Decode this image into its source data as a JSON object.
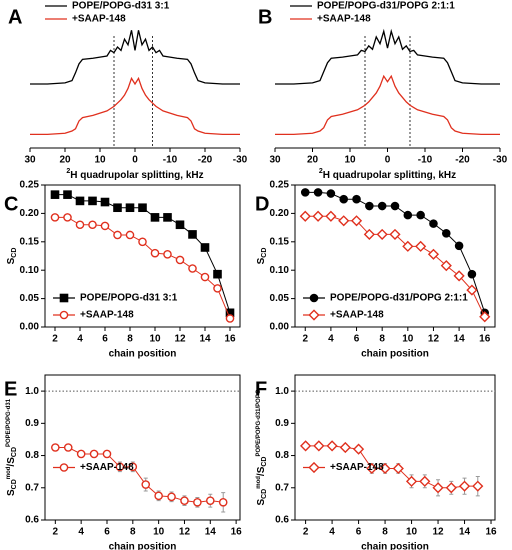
{
  "chart_data": [
    {
      "type": "line",
      "label": "A",
      "legend": "top",
      "xlabel_parts": [
        "2",
        "H quadrupolar splitting, kHz"
      ],
      "x": [
        30,
        25,
        20,
        18,
        17,
        16,
        15,
        12,
        10,
        8,
        7,
        6,
        5,
        4,
        3,
        2,
        1,
        0,
        -1,
        -2,
        -3,
        -4,
        -5,
        -6,
        -7,
        -8,
        -10,
        -12,
        -15,
        -16,
        -17,
        -18,
        -20,
        -25,
        -30
      ],
      "xlim": [
        30,
        -30
      ],
      "xticks": [
        30,
        20,
        10,
        0,
        -10,
        -20,
        -30
      ],
      "ylim": [
        0,
        1
      ],
      "dashed_lines": [
        6,
        -5
      ],
      "series": [
        {
          "name": "POPE/POPG-d31 3:1",
          "color": "#000000",
          "values": [
            0.5,
            0.5,
            0.51,
            0.53,
            0.6,
            0.68,
            0.72,
            0.73,
            0.74,
            0.75,
            0.8,
            0.78,
            0.83,
            0.8,
            0.9,
            0.85,
            0.98,
            0.8,
            0.98,
            0.85,
            0.9,
            0.8,
            0.83,
            0.78,
            0.8,
            0.75,
            0.74,
            0.73,
            0.72,
            0.68,
            0.6,
            0.53,
            0.51,
            0.5,
            0.5
          ]
        },
        {
          "name": "+SAAP-148",
          "color": "#e0301e",
          "values": [
            0.05,
            0.05,
            0.06,
            0.08,
            0.1,
            0.17,
            0.2,
            0.22,
            0.24,
            0.26,
            0.28,
            0.3,
            0.33,
            0.36,
            0.4,
            0.46,
            0.55,
            0.5,
            0.55,
            0.46,
            0.4,
            0.36,
            0.33,
            0.3,
            0.28,
            0.26,
            0.24,
            0.22,
            0.2,
            0.17,
            0.1,
            0.08,
            0.06,
            0.05,
            0.05
          ]
        }
      ]
    },
    {
      "type": "line",
      "label": "B",
      "legend": "top",
      "xlabel_parts": [
        "2",
        "H quadrupolar splitting, kHz"
      ],
      "x": [
        30,
        25,
        20,
        18,
        17,
        16,
        15,
        12,
        10,
        8,
        7,
        6,
        5,
        4,
        3,
        2,
        1,
        0,
        -1,
        -2,
        -3,
        -4,
        -5,
        -6,
        -7,
        -8,
        -10,
        -12,
        -15,
        -16,
        -17,
        -18,
        -20,
        -25,
        -30
      ],
      "xlim": [
        30,
        -30
      ],
      "xticks": [
        30,
        20,
        10,
        0,
        -10,
        -20,
        -30
      ],
      "ylim": [
        0,
        1
      ],
      "dashed_lines": [
        6,
        -6
      ],
      "series": [
        {
          "name": "POPE/POPG-d31/POPG 2:1:1",
          "color": "#000000",
          "values": [
            0.5,
            0.5,
            0.51,
            0.53,
            0.61,
            0.69,
            0.73,
            0.74,
            0.75,
            0.76,
            0.8,
            0.79,
            0.84,
            0.81,
            0.92,
            0.86,
            0.97,
            0.82,
            0.97,
            0.86,
            0.92,
            0.81,
            0.84,
            0.79,
            0.8,
            0.76,
            0.75,
            0.74,
            0.73,
            0.69,
            0.61,
            0.53,
            0.51,
            0.5,
            0.5
          ]
        },
        {
          "name": "+SAAP-148",
          "color": "#e0301e",
          "values": [
            0.05,
            0.05,
            0.06,
            0.08,
            0.11,
            0.18,
            0.21,
            0.23,
            0.25,
            0.27,
            0.29,
            0.31,
            0.34,
            0.38,
            0.42,
            0.48,
            0.57,
            0.52,
            0.57,
            0.48,
            0.42,
            0.38,
            0.34,
            0.31,
            0.29,
            0.27,
            0.25,
            0.23,
            0.21,
            0.18,
            0.11,
            0.08,
            0.06,
            0.05,
            0.05
          ]
        }
      ]
    },
    {
      "type": "line",
      "label": "C",
      "legend": "lower left",
      "xlabel": "chain position",
      "ylabel_parts": [
        "S",
        "CD"
      ],
      "x": [
        2,
        3,
        4,
        5,
        6,
        7,
        8,
        9,
        10,
        11,
        12,
        13,
        14,
        15,
        16
      ],
      "xlim": [
        1.2,
        16.8
      ],
      "xticks": [
        2,
        4,
        6,
        8,
        10,
        12,
        14,
        16
      ],
      "ylim": [
        0,
        0.25
      ],
      "yticks": [
        {
          "value": 0,
          "label": "0.00"
        },
        {
          "value": 0.05,
          "label": "0.05"
        },
        {
          "value": 0.1,
          "label": "0.10"
        },
        {
          "value": 0.15,
          "label": "0.15"
        },
        {
          "value": 0.2,
          "label": "0.20"
        },
        {
          "value": 0.25,
          "label": "0.25"
        }
      ],
      "series": [
        {
          "name": "POPE/POPG-d31 3:1",
          "color": "#000000",
          "marker": "square",
          "filled": true,
          "values": [
            0.233,
            0.233,
            0.222,
            0.222,
            0.22,
            0.21,
            0.21,
            0.21,
            0.193,
            0.193,
            0.18,
            0.163,
            0.14,
            0.093,
            0.025
          ]
        },
        {
          "name": "+SAAP-148",
          "color": "#e0301e",
          "marker": "circle",
          "filled": false,
          "values": [
            0.193,
            0.193,
            0.18,
            0.18,
            0.178,
            0.162,
            0.162,
            0.15,
            0.13,
            0.128,
            0.118,
            0.103,
            0.088,
            0.068,
            0.015
          ]
        }
      ]
    },
    {
      "type": "line",
      "label": "D",
      "legend": "lower left",
      "xlabel": "chain position",
      "ylabel_parts": [
        "S",
        "CD"
      ],
      "x": [
        2,
        3,
        4,
        5,
        6,
        7,
        8,
        9,
        10,
        11,
        12,
        13,
        14,
        15,
        16
      ],
      "xlim": [
        1.2,
        16.8
      ],
      "xticks": [
        2,
        4,
        6,
        8,
        10,
        12,
        14,
        16
      ],
      "ylim": [
        0,
        0.25
      ],
      "yticks": [
        {
          "value": 0,
          "label": "0.00"
        },
        {
          "value": 0.05,
          "label": "0.05"
        },
        {
          "value": 0.1,
          "label": "0.10"
        },
        {
          "value": 0.15,
          "label": "0.15"
        },
        {
          "value": 0.2,
          "label": "0.20"
        },
        {
          "value": 0.25,
          "label": "0.25"
        }
      ],
      "series": [
        {
          "name": "POPE/POPG-d31/POPG 2:1:1",
          "color": "#000000",
          "marker": "circle",
          "filled": true,
          "values": [
            0.237,
            0.237,
            0.235,
            0.225,
            0.225,
            0.213,
            0.213,
            0.213,
            0.197,
            0.197,
            0.182,
            0.165,
            0.143,
            0.093,
            0.025
          ]
        },
        {
          "name": "+SAAP-148",
          "color": "#e0301e",
          "marker": "diamond",
          "filled": false,
          "values": [
            0.195,
            0.195,
            0.195,
            0.187,
            0.187,
            0.163,
            0.163,
            0.163,
            0.142,
            0.142,
            0.128,
            0.108,
            0.09,
            0.065,
            0.018
          ]
        }
      ]
    },
    {
      "type": "line",
      "label": "E",
      "legend": "center left",
      "xlabel": "chain position",
      "ylabel_parts": [
        "S",
        "CD",
        "mod",
        "/S",
        "CD",
        "POPE/POPG-d31"
      ],
      "x": [
        2,
        3,
        4,
        5,
        6,
        7,
        8,
        9,
        10,
        11,
        12,
        13,
        14,
        15
      ],
      "xlim": [
        1.2,
        16.3
      ],
      "xticks": [
        2,
        4,
        6,
        8,
        10,
        12,
        14,
        16
      ],
      "ylim": [
        0.6,
        1.05
      ],
      "yticks": [
        0.6,
        0.7,
        0.8,
        0.9,
        {
          "value": 1,
          "label": "1.0"
        }
      ],
      "reference_line": 1,
      "series": [
        {
          "name": "+SAAP-148",
          "color": "#e0301e",
          "marker": "circle",
          "filled": false,
          "values": [
            0.825,
            0.825,
            0.805,
            0.805,
            0.805,
            0.765,
            0.765,
            0.71,
            0.675,
            0.672,
            0.66,
            0.655,
            0.66,
            0.655
          ],
          "errors": [
            0.01,
            0.01,
            0.01,
            0.01,
            0.01,
            0.015,
            0.015,
            0.02,
            0.015,
            0.015,
            0.015,
            0.015,
            0.02,
            0.03
          ]
        }
      ]
    },
    {
      "type": "line",
      "label": "F",
      "legend": "center left",
      "xlabel": "chain position",
      "ylabel_parts": [
        "S",
        "CD",
        "mod",
        "/S",
        "CD",
        "POPE/POPG-d31/POPG"
      ],
      "x": [
        2,
        3,
        4,
        5,
        6,
        7,
        8,
        9,
        10,
        11,
        12,
        13,
        14,
        15
      ],
      "xlim": [
        1.2,
        16.3
      ],
      "xticks": [
        2,
        4,
        6,
        8,
        10,
        12,
        14,
        16
      ],
      "ylim": [
        0.6,
        1.05
      ],
      "yticks": [
        0.6,
        0.7,
        0.8,
        0.9,
        {
          "value": 1,
          "label": "1.0"
        }
      ],
      "reference_line": 1,
      "series": [
        {
          "name": "+SAAP-148",
          "color": "#e0301e",
          "marker": "diamond",
          "filled": false,
          "values": [
            0.83,
            0.83,
            0.83,
            0.825,
            0.82,
            0.76,
            0.76,
            0.76,
            0.72,
            0.72,
            0.7,
            0.7,
            0.705,
            0.705
          ],
          "errors": [
            0.01,
            0.01,
            0.01,
            0.01,
            0.01,
            0.015,
            0.015,
            0.015,
            0.02,
            0.02,
            0.025,
            0.02,
            0.025,
            0.03
          ]
        }
      ]
    }
  ]
}
